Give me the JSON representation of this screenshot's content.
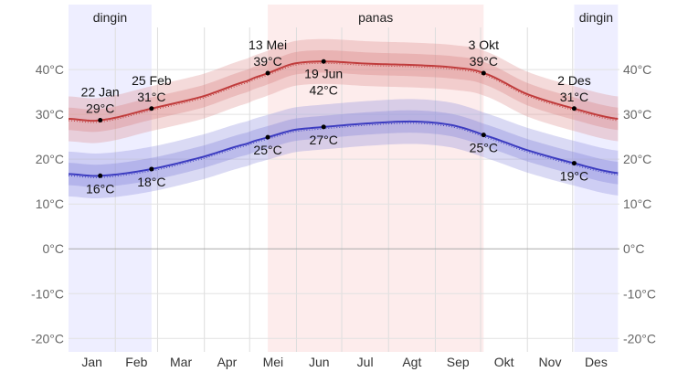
{
  "chart_data": {
    "type": "line",
    "ylim": [
      -23,
      54.5
    ],
    "yticks": [
      -20,
      -10,
      0,
      10,
      20,
      30,
      40
    ],
    "ytick_labels": [
      "-20°C",
      "-10°C",
      "0°C",
      "10°C",
      "20°C",
      "30°C",
      "40°C"
    ],
    "months": [
      "Jan",
      "Feb",
      "Mar",
      "Apr",
      "Mei",
      "Jun",
      "Jul",
      "Agt",
      "Sep",
      "Okt",
      "Nov",
      "Des"
    ],
    "grid": true,
    "seasons": [
      {
        "label": "dingin",
        "start_day": 1,
        "end_day": 56,
        "color": "#eeeeff"
      },
      {
        "label": "panas",
        "start_day": 133,
        "end_day": 276,
        "color": "#fdecec"
      },
      {
        "label": "dingin",
        "start_day": 336,
        "end_day": 365,
        "color": "#eeeeff"
      }
    ],
    "series": [
      {
        "key": "high",
        "color": "#c03c3c",
        "band_color": "#d98585",
        "x": [
          1,
          22,
          56,
          90,
          120,
          133,
          150,
          170,
          200,
          230,
          255,
          276,
          305,
          336,
          365
        ],
        "y": [
          29,
          28.7,
          31.3,
          34,
          37.5,
          39.2,
          41.3,
          41.8,
          41.3,
          41,
          40.5,
          39.2,
          34.5,
          31.3,
          29
        ]
      },
      {
        "key": "low",
        "color": "#3c3cc0",
        "band_color": "#8585d9",
        "x": [
          1,
          22,
          56,
          90,
          120,
          133,
          150,
          170,
          200,
          230,
          255,
          276,
          305,
          336,
          365
        ],
        "y": [
          16.7,
          16.3,
          17.8,
          20.5,
          23.5,
          24.9,
          26.5,
          27.2,
          28,
          28.4,
          27.6,
          25.4,
          22,
          19.1,
          16.9
        ]
      }
    ],
    "annotations": [
      {
        "day": 22,
        "value": 28.7,
        "date": "22 Jan",
        "text": "29°C",
        "pos": "above"
      },
      {
        "day": 56,
        "value": 31.3,
        "date": "25 Feb",
        "text": "31°C",
        "pos": "above"
      },
      {
        "day": 133,
        "value": 39.2,
        "date": "13 Mei",
        "text": "39°C",
        "pos": "above"
      },
      {
        "day": 170,
        "value": 41.8,
        "date": "19 Jun",
        "text": "42°C",
        "pos": "below"
      },
      {
        "day": 276,
        "value": 39.2,
        "date": "3 Okt",
        "text": "39°C",
        "pos": "above"
      },
      {
        "day": 336,
        "value": 31.3,
        "date": "2 Des",
        "text": "31°C",
        "pos": "above"
      },
      {
        "day": 22,
        "value": 16.3,
        "date": "",
        "text": "16°C",
        "pos": "below"
      },
      {
        "day": 56,
        "value": 17.8,
        "date": "",
        "text": "18°C",
        "pos": "below"
      },
      {
        "day": 133,
        "value": 24.9,
        "date": "",
        "text": "25°C",
        "pos": "below"
      },
      {
        "day": 170,
        "value": 27.2,
        "date": "",
        "text": "27°C",
        "pos": "below"
      },
      {
        "day": 276,
        "value": 25.4,
        "date": "",
        "text": "25°C",
        "pos": "below"
      },
      {
        "day": 336,
        "value": 19.1,
        "date": "",
        "text": "19°C",
        "pos": "below"
      }
    ]
  }
}
